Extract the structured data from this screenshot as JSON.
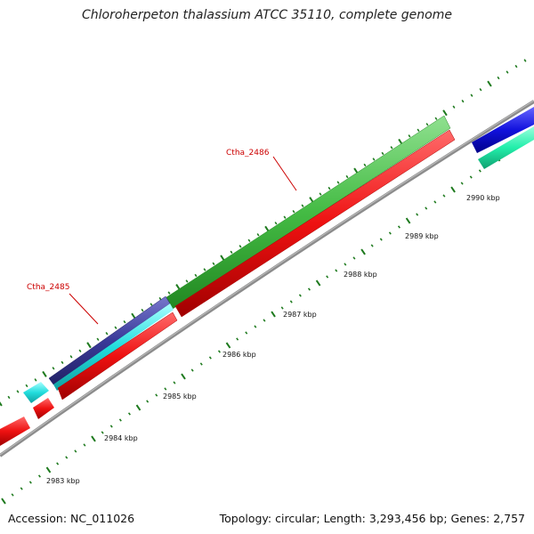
{
  "title": "Chloroherpeton thalassium ATCC 35110, complete genome",
  "accession": "Accession: NC_011026",
  "summary": "Topology: circular; Length: 3,293,456 bp; Genes: 2,757",
  "kbp_labels": [
    {
      "name": "2983 kbp",
      "value": 2983
    },
    {
      "name": "2984 kbp",
      "value": 2984
    },
    {
      "name": "2985 kbp",
      "value": 2985
    },
    {
      "name": "2986 kbp",
      "value": 2986
    },
    {
      "name": "2987 kbp",
      "value": 2987
    },
    {
      "name": "2988 kbp",
      "value": 2988
    },
    {
      "name": "2989 kbp",
      "value": 2989
    },
    {
      "name": "2990 kbp",
      "value": 2990
    }
  ],
  "gene_labels": [
    {
      "name": "Ctha_2486"
    },
    {
      "name": "Ctha_2485"
    }
  ],
  "colors": {
    "backbone": "#8c8c8c",
    "ticks": "#1e7a1e",
    "cds_red": "#ee1111",
    "cds_green": "#44bb44",
    "cds_navy": "#3a3a99",
    "cds_cyan": "#22dddd",
    "cds_blue": "#1111dd",
    "cds_teal": "#22eeaa",
    "label_red": "#cc0000"
  }
}
